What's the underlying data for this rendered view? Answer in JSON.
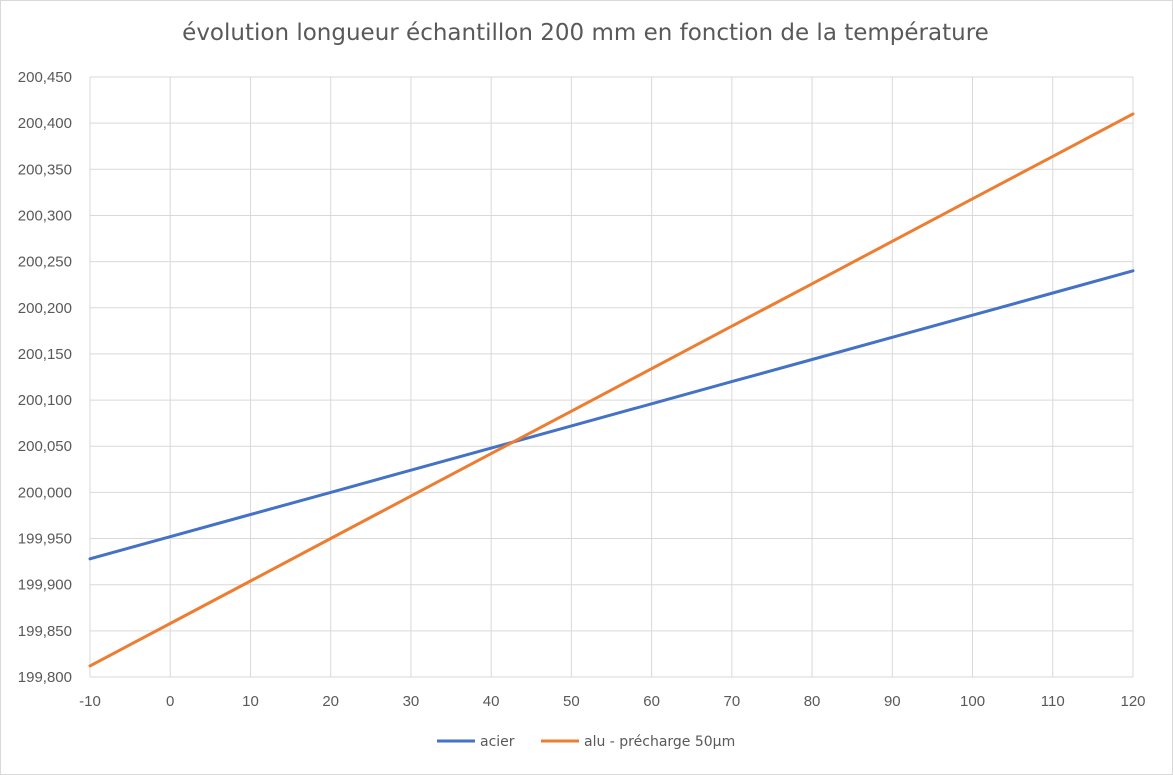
{
  "chart_data": {
    "type": "line",
    "title": "évolution longueur échantillon 200 mm en fonction de la température",
    "xlabel": "",
    "ylabel": "",
    "x": [
      -10,
      0,
      10,
      20,
      30,
      40,
      50,
      60,
      70,
      80,
      90,
      100,
      110,
      120
    ],
    "xlim": [
      -10,
      120
    ],
    "ylim": [
      199.8,
      200.45
    ],
    "grid": true,
    "legend_position": "bottom",
    "x_tick_labels": [
      "-10",
      "0",
      "10",
      "20",
      "30",
      "40",
      "50",
      "60",
      "70",
      "80",
      "90",
      "100",
      "110",
      "120"
    ],
    "y_tick_values": [
      199.8,
      199.85,
      199.9,
      199.95,
      200.0,
      200.05,
      200.1,
      200.15,
      200.2,
      200.25,
      200.3,
      200.35,
      200.4,
      200.45
    ],
    "y_tick_labels": [
      "199,800",
      "199,850",
      "199,900",
      "199,950",
      "200,000",
      "200,050",
      "200,100",
      "200,150",
      "200,200",
      "200,250",
      "200,300",
      "200,350",
      "200,400",
      "200,450"
    ],
    "series": [
      {
        "name": "acier",
        "color": "#4472c4",
        "values": [
          199.928,
          199.952,
          199.976,
          200.0,
          200.024,
          200.048,
          200.072,
          200.096,
          200.12,
          200.144,
          200.168,
          200.192,
          200.216,
          200.24
        ]
      },
      {
        "name": "alu - précharge 50µm",
        "color": "#ed7d31",
        "values": [
          199.812,
          199.858,
          199.904,
          199.95,
          199.996,
          200.042,
          200.088,
          200.134,
          200.18,
          200.226,
          200.272,
          200.318,
          200.364,
          200.41
        ]
      }
    ]
  }
}
